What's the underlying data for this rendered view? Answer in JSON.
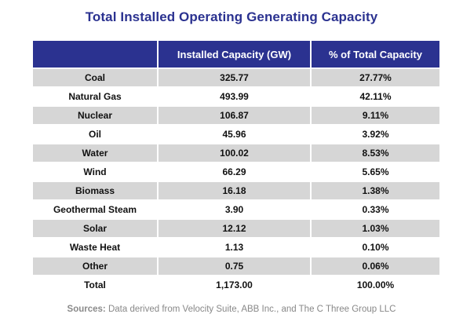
{
  "chart_data": {
    "type": "table",
    "title": "Total Installed Operating Generating Capacity",
    "columns": [
      "",
      "Installed Capacity (GW)",
      "% of Total Capacity"
    ],
    "rows": [
      {
        "name": "Coal",
        "capacity": "325.77",
        "percent": "27.77%"
      },
      {
        "name": "Natural Gas",
        "capacity": "493.99",
        "percent": "42.11%"
      },
      {
        "name": "Nuclear",
        "capacity": "106.87",
        "percent": "9.11%"
      },
      {
        "name": "Oil",
        "capacity": "45.96",
        "percent": "3.92%"
      },
      {
        "name": "Water",
        "capacity": "100.02",
        "percent": "8.53%"
      },
      {
        "name": "Wind",
        "capacity": "66.29",
        "percent": "5.65%"
      },
      {
        "name": "Biomass",
        "capacity": "16.18",
        "percent": "1.38%"
      },
      {
        "name": "Geothermal Steam",
        "capacity": "3.90",
        "percent": "0.33%"
      },
      {
        "name": "Solar",
        "capacity": "12.12",
        "percent": "1.03%"
      },
      {
        "name": "Waste Heat",
        "capacity": "1.13",
        "percent": "0.10%"
      },
      {
        "name": "Other",
        "capacity": "0.75",
        "percent": "0.06%"
      },
      {
        "name": "Total",
        "capacity": "1,173.00",
        "percent": "100.00%"
      }
    ],
    "sources_label": "Sources:",
    "sources_text": "Data derived from Velocity Suite, ABB Inc., and The C Three Group LLC"
  },
  "colors": {
    "header_bg": "#2b3290",
    "title": "#2b3290",
    "row_shade": "#d6d6d6",
    "sources_text": "#888888"
  }
}
